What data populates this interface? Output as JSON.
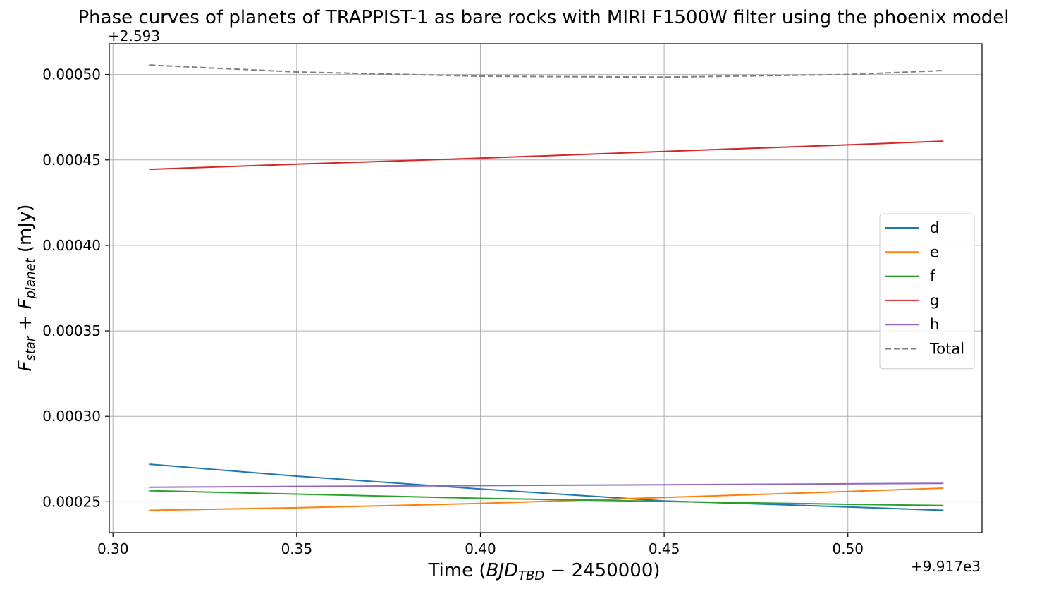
{
  "chart_data": {
    "type": "line",
    "title": "Phase curves of planets of TRAPPIST-1 as bare rocks with MIRI F1500W filter using the phoenix model",
    "xlabel": {
      "prefix": "Time (",
      "main": "BJD",
      "sub": "TBD",
      "suffix": " − 2450000)"
    },
    "ylabel": {
      "f1": "F",
      "s1": "star",
      "plus": " + ",
      "f2": "F",
      "s2": "planet",
      "unit": " (mJy)"
    },
    "x_offset_label": "+9.917e3",
    "y_offset_label": "+2.593",
    "xlim": [
      0.299,
      0.5365
    ],
    "ylim": [
      0.000232,
      0.000518
    ],
    "xticks": [
      0.3,
      0.35,
      0.4,
      0.45,
      0.5
    ],
    "xtick_labels": [
      "0.30",
      "0.35",
      "0.40",
      "0.45",
      "0.50"
    ],
    "yticks": [
      0.00025,
      0.0003,
      0.00035,
      0.0004,
      0.00045,
      0.0005
    ],
    "ytick_labels": [
      "0.00025",
      "0.00030",
      "0.00035",
      "0.00040",
      "0.00045",
      "0.00050"
    ],
    "grid": true,
    "legend_position": "center-right",
    "x": [
      0.31,
      0.35,
      0.4,
      0.45,
      0.5,
      0.526
    ],
    "series": [
      {
        "name": "d",
        "color": "#1f77b4",
        "dash": "solid",
        "values": [
          0.000272,
          0.000265,
          0.0002575,
          0.0002505,
          0.000247,
          0.000245
        ]
      },
      {
        "name": "e",
        "color": "#ff7f0e",
        "dash": "solid",
        "values": [
          0.000245,
          0.0002465,
          0.000249,
          0.0002525,
          0.000256,
          0.000258
        ]
      },
      {
        "name": "f",
        "color": "#2ca02c",
        "dash": "solid",
        "values": [
          0.0002565,
          0.0002545,
          0.000252,
          0.0002502,
          0.0002485,
          0.0002478
        ]
      },
      {
        "name": "g",
        "color": "#d62728",
        "dash": "solid",
        "values": [
          0.0004445,
          0.0004475,
          0.000451,
          0.000455,
          0.0004588,
          0.000461
        ]
      },
      {
        "name": "h",
        "color": "#9467bd",
        "dash": "solid",
        "values": [
          0.0002585,
          0.000259,
          0.0002595,
          0.00026,
          0.0002605,
          0.0002608
        ]
      },
      {
        "name": "Total",
        "color": "#7f7f7f",
        "dash": "dashed",
        "values": [
          0.0005055,
          0.0005015,
          0.000499,
          0.0004985,
          0.0005,
          0.0005023
        ]
      }
    ]
  }
}
